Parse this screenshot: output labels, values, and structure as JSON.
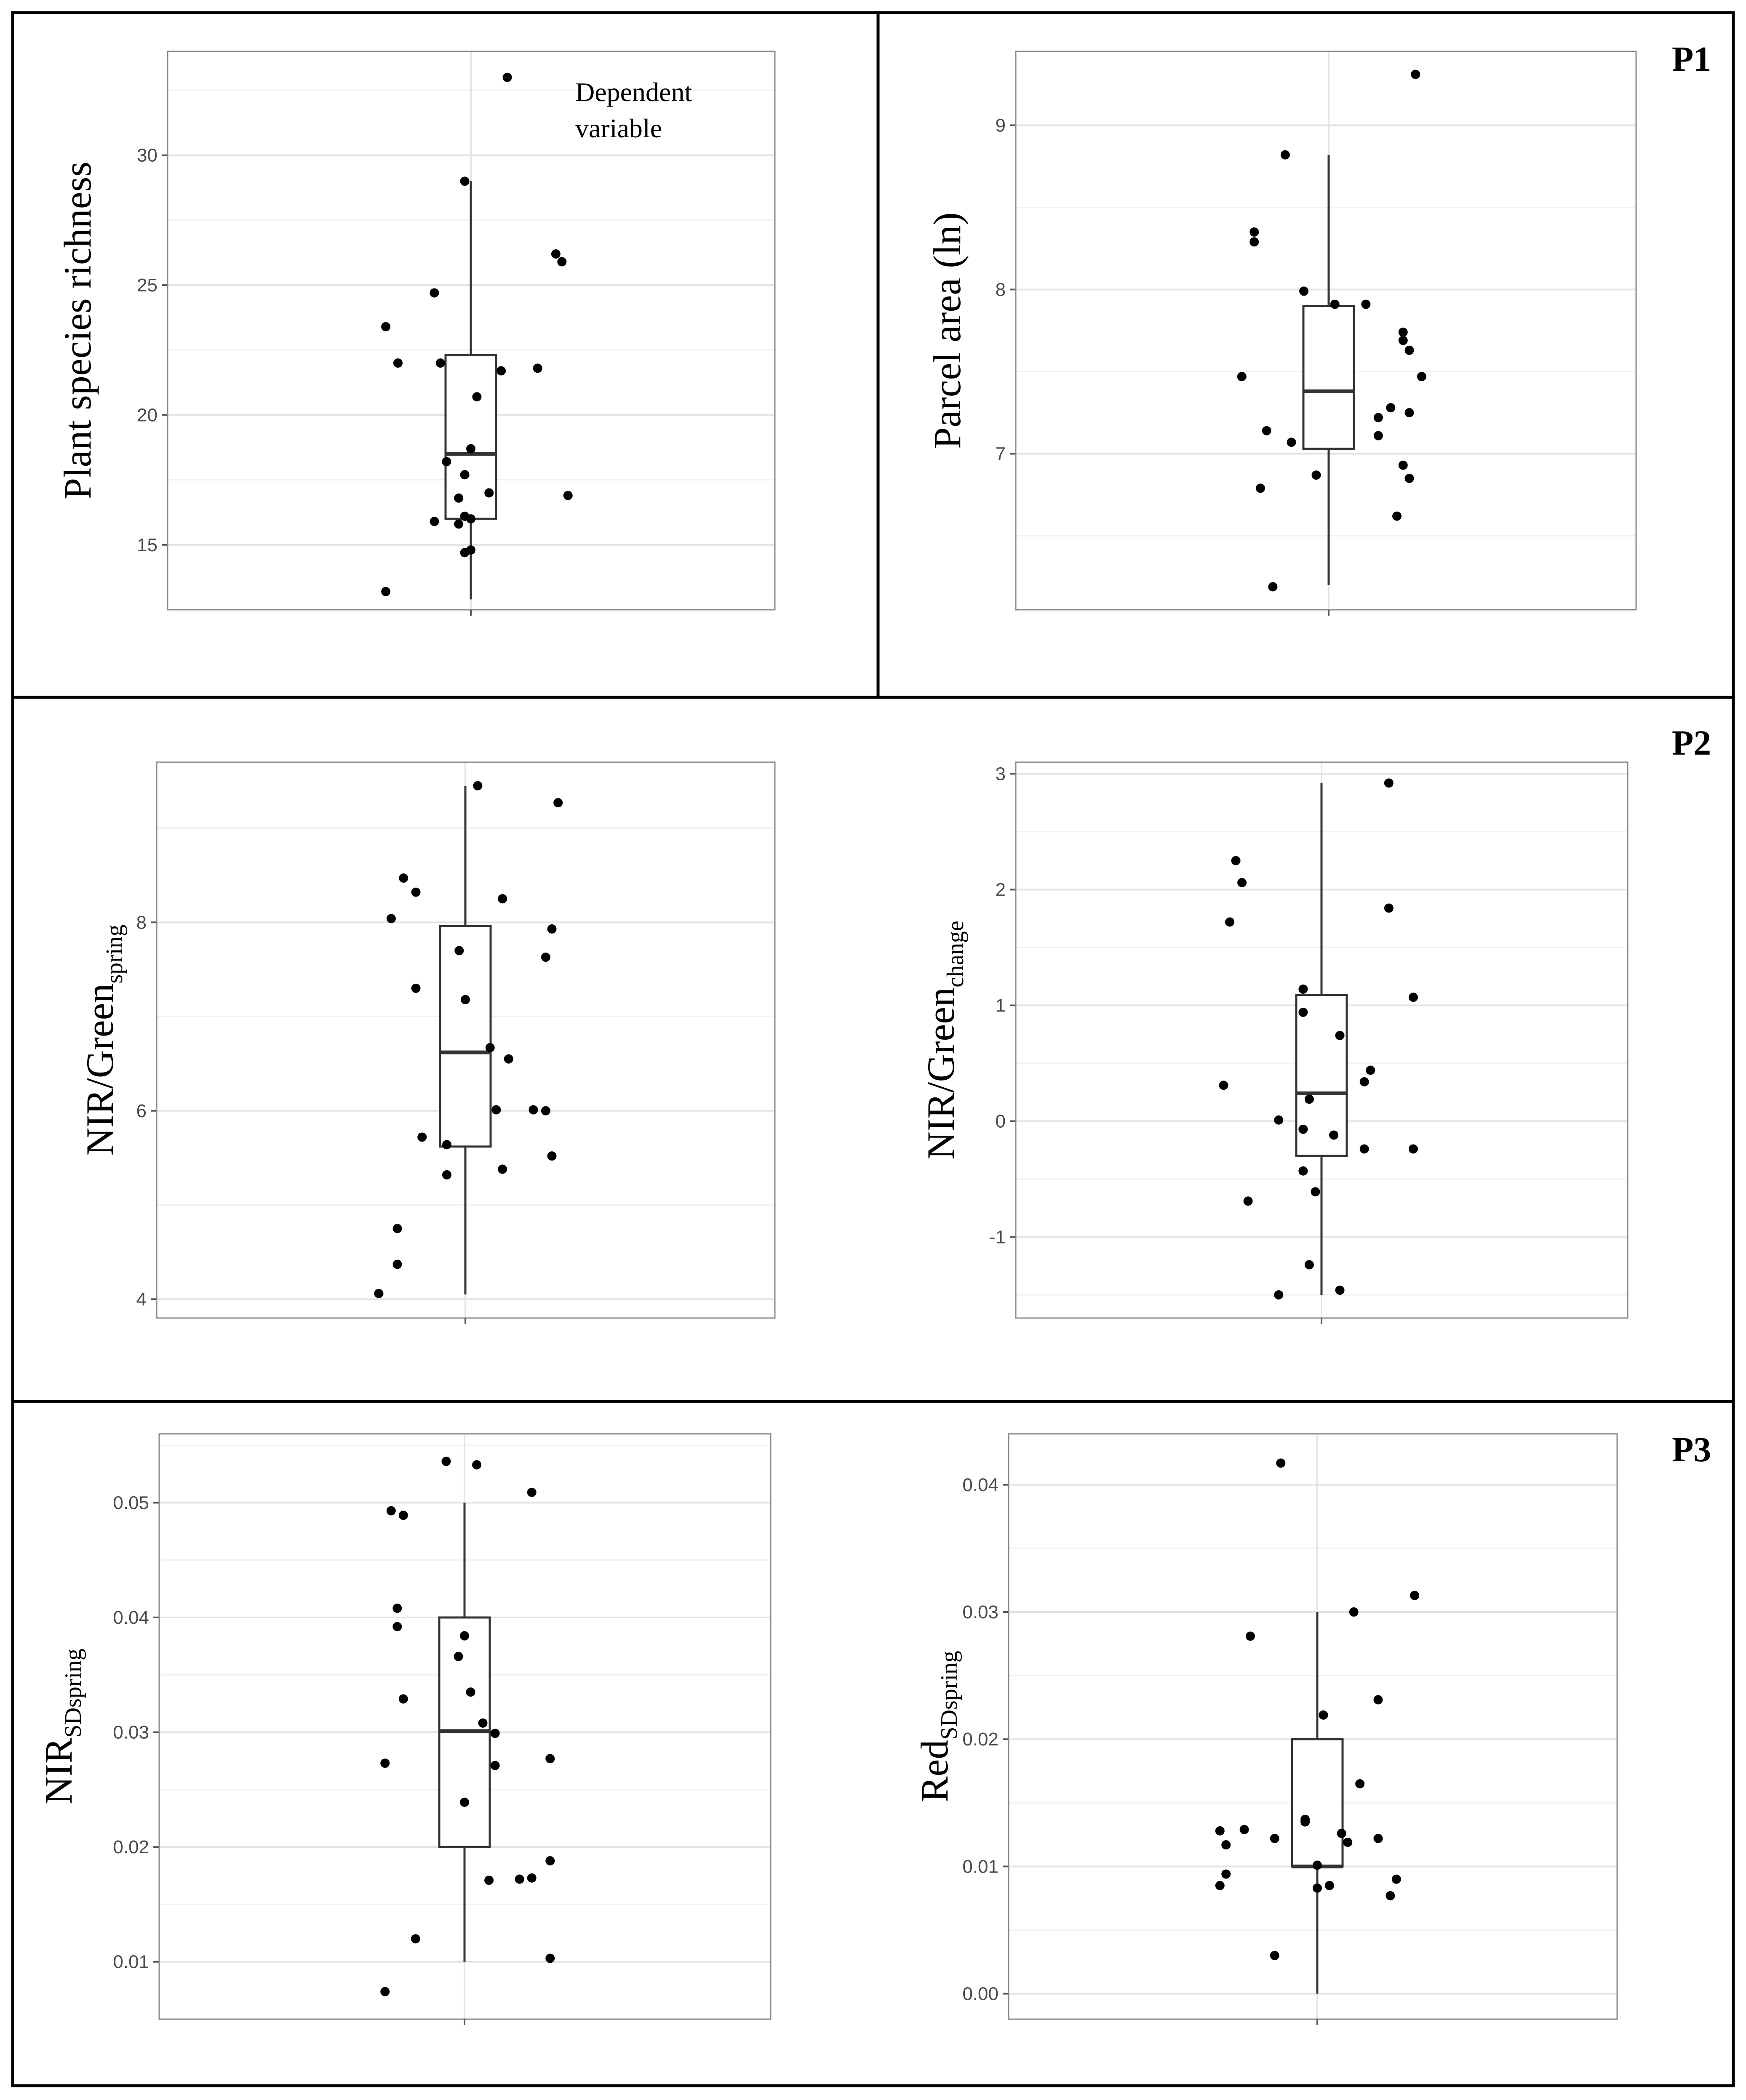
{
  "sections": [
    {
      "id": "P1",
      "label": "P1"
    },
    {
      "id": "P2",
      "label": "P2"
    },
    {
      "id": "P3",
      "label": "P3"
    }
  ],
  "legend": {
    "line1": "Dependent",
    "line2": "variable"
  },
  "chart_data": [
    {
      "type": "box",
      "ylabel": "Plant species richness",
      "ylabel_sub": "",
      "ylim": [
        12.5,
        34
      ],
      "yticks": [
        15,
        20,
        25,
        30
      ],
      "tick_labels": [
        "15",
        "20",
        "25",
        "30"
      ],
      "box": {
        "q1": 16.0,
        "median": 18.5,
        "q3": 22.3,
        "whisker_low": 12.9,
        "whisker_high": 29.0
      },
      "points": [
        {
          "jitter": 0.06,
          "y": 33.0
        },
        {
          "jitter": -0.01,
          "y": 29.0
        },
        {
          "jitter": 0.14,
          "y": 26.2
        },
        {
          "jitter": 0.15,
          "y": 25.9
        },
        {
          "jitter": -0.06,
          "y": 24.7
        },
        {
          "jitter": -0.14,
          "y": 23.4
        },
        {
          "jitter": -0.12,
          "y": 22.0
        },
        {
          "jitter": -0.05,
          "y": 22.0
        },
        {
          "jitter": 0.05,
          "y": 21.7
        },
        {
          "jitter": 0.11,
          "y": 21.8
        },
        {
          "jitter": 0.01,
          "y": 20.7
        },
        {
          "jitter": 0.0,
          "y": 18.7
        },
        {
          "jitter": -0.04,
          "y": 18.2
        },
        {
          "jitter": -0.01,
          "y": 17.7
        },
        {
          "jitter": 0.03,
          "y": 17.0
        },
        {
          "jitter": -0.02,
          "y": 16.8
        },
        {
          "jitter": 0.16,
          "y": 16.9
        },
        {
          "jitter": -0.06,
          "y": 15.9
        },
        {
          "jitter": -0.02,
          "y": 15.8
        },
        {
          "jitter": -0.01,
          "y": 16.1
        },
        {
          "jitter": 0.0,
          "y": 16.0
        },
        {
          "jitter": 0.0,
          "y": 14.8
        },
        {
          "jitter": -0.01,
          "y": 14.7
        },
        {
          "jitter": -0.14,
          "y": 13.2
        }
      ]
    },
    {
      "type": "box",
      "ylabel": "Parcel area (ln)",
      "ylabel_sub": "",
      "ylim": [
        6.05,
        9.45
      ],
      "yticks": [
        7,
        8,
        9
      ],
      "tick_labels": [
        "7",
        "8",
        "9"
      ],
      "box": {
        "q1": 7.03,
        "median": 7.38,
        "q3": 7.9,
        "whisker_low": 6.2,
        "whisker_high": 8.82
      },
      "points": [
        {
          "jitter": 0.14,
          "y": 9.31
        },
        {
          "jitter": -0.07,
          "y": 8.82
        },
        {
          "jitter": -0.12,
          "y": 8.35
        },
        {
          "jitter": -0.12,
          "y": 8.29
        },
        {
          "jitter": -0.04,
          "y": 7.99
        },
        {
          "jitter": 0.01,
          "y": 7.91
        },
        {
          "jitter": 0.06,
          "y": 7.91
        },
        {
          "jitter": 0.12,
          "y": 7.74
        },
        {
          "jitter": 0.12,
          "y": 7.69
        },
        {
          "jitter": 0.13,
          "y": 7.63
        },
        {
          "jitter": 0.15,
          "y": 7.47
        },
        {
          "jitter": -0.14,
          "y": 7.47
        },
        {
          "jitter": 0.1,
          "y": 7.28
        },
        {
          "jitter": 0.13,
          "y": 7.25
        },
        {
          "jitter": 0.08,
          "y": 7.22
        },
        {
          "jitter": -0.1,
          "y": 7.14
        },
        {
          "jitter": 0.08,
          "y": 7.11
        },
        {
          "jitter": -0.06,
          "y": 7.07
        },
        {
          "jitter": 0.12,
          "y": 6.93
        },
        {
          "jitter": -0.02,
          "y": 6.87
        },
        {
          "jitter": 0.13,
          "y": 6.85
        },
        {
          "jitter": -0.11,
          "y": 6.79
        },
        {
          "jitter": 0.11,
          "y": 6.62
        },
        {
          "jitter": -0.09,
          "y": 6.19
        }
      ]
    },
    {
      "type": "box",
      "ylabel": "NIR/Green",
      "ylabel_sub": "spring",
      "ylim": [
        3.8,
        9.7
      ],
      "yticks": [
        4,
        6,
        8
      ],
      "tick_labels": [
        "4",
        "6",
        "8"
      ],
      "box": {
        "q1": 5.62,
        "median": 6.62,
        "q3": 7.96,
        "whisker_low": 4.05,
        "whisker_high": 9.45
      },
      "points": [
        {
          "jitter": 0.02,
          "y": 9.45
        },
        {
          "jitter": 0.15,
          "y": 9.27
        },
        {
          "jitter": -0.1,
          "y": 8.47
        },
        {
          "jitter": -0.08,
          "y": 8.32
        },
        {
          "jitter": 0.06,
          "y": 8.25
        },
        {
          "jitter": -0.12,
          "y": 8.04
        },
        {
          "jitter": 0.14,
          "y": 7.93
        },
        {
          "jitter": -0.01,
          "y": 7.7
        },
        {
          "jitter": 0.13,
          "y": 7.63
        },
        {
          "jitter": -0.08,
          "y": 7.3
        },
        {
          "jitter": 0.0,
          "y": 7.18
        },
        {
          "jitter": 0.04,
          "y": 6.67
        },
        {
          "jitter": 0.07,
          "y": 6.55
        },
        {
          "jitter": 0.05,
          "y": 6.01
        },
        {
          "jitter": 0.11,
          "y": 6.01
        },
        {
          "jitter": 0.13,
          "y": 6.0
        },
        {
          "jitter": -0.07,
          "y": 5.72
        },
        {
          "jitter": -0.03,
          "y": 5.64
        },
        {
          "jitter": 0.14,
          "y": 5.52
        },
        {
          "jitter": 0.06,
          "y": 5.38
        },
        {
          "jitter": -0.03,
          "y": 5.32
        },
        {
          "jitter": -0.11,
          "y": 4.75
        },
        {
          "jitter": -0.11,
          "y": 4.37
        },
        {
          "jitter": -0.14,
          "y": 4.06
        }
      ]
    },
    {
      "type": "box",
      "ylabel": "NIR/Green",
      "ylabel_sub": "change",
      "ylim": [
        -1.7,
        3.1
      ],
      "yticks": [
        -1,
        0,
        1,
        2,
        3
      ],
      "tick_labels": [
        "-1",
        "0",
        "1",
        "2",
        "3"
      ],
      "box": {
        "q1": -0.3,
        "median": 0.24,
        "q3": 1.09,
        "whisker_low": -1.5,
        "whisker_high": 2.92
      },
      "points": [
        {
          "jitter": 0.11,
          "y": 2.92
        },
        {
          "jitter": -0.14,
          "y": 2.25
        },
        {
          "jitter": -0.13,
          "y": 2.06
        },
        {
          "jitter": 0.11,
          "y": 1.84
        },
        {
          "jitter": -0.15,
          "y": 1.72
        },
        {
          "jitter": -0.03,
          "y": 1.14
        },
        {
          "jitter": 0.15,
          "y": 1.07
        },
        {
          "jitter": -0.03,
          "y": 0.94
        },
        {
          "jitter": 0.03,
          "y": 0.74
        },
        {
          "jitter": 0.08,
          "y": 0.44
        },
        {
          "jitter": 0.07,
          "y": 0.34
        },
        {
          "jitter": -0.16,
          "y": 0.31
        },
        {
          "jitter": -0.07,
          "y": 0.01
        },
        {
          "jitter": -0.02,
          "y": 0.19
        },
        {
          "jitter": -0.03,
          "y": -0.07
        },
        {
          "jitter": 0.02,
          "y": -0.12
        },
        {
          "jitter": 0.07,
          "y": -0.24
        },
        {
          "jitter": 0.15,
          "y": -0.24
        },
        {
          "jitter": -0.03,
          "y": -0.43
        },
        {
          "jitter": -0.01,
          "y": -0.61
        },
        {
          "jitter": -0.12,
          "y": -0.69
        },
        {
          "jitter": -0.02,
          "y": -1.24
        },
        {
          "jitter": 0.03,
          "y": -1.46
        },
        {
          "jitter": -0.07,
          "y": -1.5
        }
      ]
    },
    {
      "type": "box",
      "ylabel": "NIR",
      "ylabel_sub": "SDspring",
      "ylim": [
        0.005,
        0.056
      ],
      "yticks": [
        0.01,
        0.02,
        0.03,
        0.04,
        0.05
      ],
      "tick_labels": [
        "0.01",
        "0.02",
        "0.03",
        "0.04",
        "0.05"
      ],
      "box": {
        "q1": 0.02,
        "median": 0.0301,
        "q3": 0.04,
        "whisker_low": 0.01,
        "whisker_high": 0.05
      },
      "points": [
        {
          "jitter": -0.03,
          "y": 0.0536
        },
        {
          "jitter": 0.02,
          "y": 0.0533
        },
        {
          "jitter": 0.11,
          "y": 0.0509
        },
        {
          "jitter": -0.12,
          "y": 0.0493
        },
        {
          "jitter": -0.1,
          "y": 0.0489
        },
        {
          "jitter": -0.11,
          "y": 0.0408
        },
        {
          "jitter": -0.11,
          "y": 0.0392
        },
        {
          "jitter": 0.0,
          "y": 0.0384
        },
        {
          "jitter": -0.01,
          "y": 0.0366
        },
        {
          "jitter": 0.01,
          "y": 0.0335
        },
        {
          "jitter": -0.1,
          "y": 0.0329
        },
        {
          "jitter": 0.03,
          "y": 0.0308
        },
        {
          "jitter": 0.05,
          "y": 0.0299
        },
        {
          "jitter": 0.14,
          "y": 0.0277
        },
        {
          "jitter": -0.13,
          "y": 0.0273
        },
        {
          "jitter": 0.05,
          "y": 0.0271
        },
        {
          "jitter": 0.0,
          "y": 0.0239
        },
        {
          "jitter": 0.14,
          "y": 0.0188
        },
        {
          "jitter": 0.11,
          "y": 0.0173
        },
        {
          "jitter": 0.09,
          "y": 0.0172
        },
        {
          "jitter": 0.04,
          "y": 0.0171
        },
        {
          "jitter": -0.08,
          "y": 0.012
        },
        {
          "jitter": 0.14,
          "y": 0.0103
        },
        {
          "jitter": -0.13,
          "y": 0.0074
        }
      ]
    },
    {
      "type": "box",
      "ylabel": "Red",
      "ylabel_sub": "SDspring",
      "ylim": [
        -0.002,
        0.044
      ],
      "yticks": [
        0.0,
        0.01,
        0.02,
        0.03,
        0.04
      ],
      "tick_labels": [
        "0.00",
        "0.01",
        "0.02",
        "0.03",
        "0.04"
      ],
      "box": {
        "q1": 0.01,
        "median": 0.01,
        "q3": 0.02,
        "whisker_low": 0.0,
        "whisker_high": 0.03
      },
      "points": [
        {
          "jitter": -0.06,
          "y": 0.0417
        },
        {
          "jitter": 0.16,
          "y": 0.0313
        },
        {
          "jitter": 0.06,
          "y": 0.03
        },
        {
          "jitter": -0.11,
          "y": 0.0281
        },
        {
          "jitter": 0.1,
          "y": 0.0231
        },
        {
          "jitter": 0.01,
          "y": 0.0219
        },
        {
          "jitter": 0.07,
          "y": 0.0165
        },
        {
          "jitter": -0.02,
          "y": 0.0137
        },
        {
          "jitter": -0.02,
          "y": 0.0135
        },
        {
          "jitter": -0.12,
          "y": 0.0129
        },
        {
          "jitter": -0.16,
          "y": 0.0128
        },
        {
          "jitter": 0.04,
          "y": 0.0126
        },
        {
          "jitter": -0.07,
          "y": 0.0122
        },
        {
          "jitter": 0.1,
          "y": 0.0122
        },
        {
          "jitter": 0.05,
          "y": 0.0119
        },
        {
          "jitter": -0.15,
          "y": 0.0117
        },
        {
          "jitter": 0.0,
          "y": 0.0101
        },
        {
          "jitter": -0.15,
          "y": 0.0094
        },
        {
          "jitter": 0.13,
          "y": 0.009
        },
        {
          "jitter": -0.16,
          "y": 0.0085
        },
        {
          "jitter": 0.02,
          "y": 0.0085
        },
        {
          "jitter": 0.0,
          "y": 0.0083
        },
        {
          "jitter": 0.12,
          "y": 0.0077
        },
        {
          "jitter": -0.07,
          "y": 0.003
        }
      ]
    }
  ]
}
